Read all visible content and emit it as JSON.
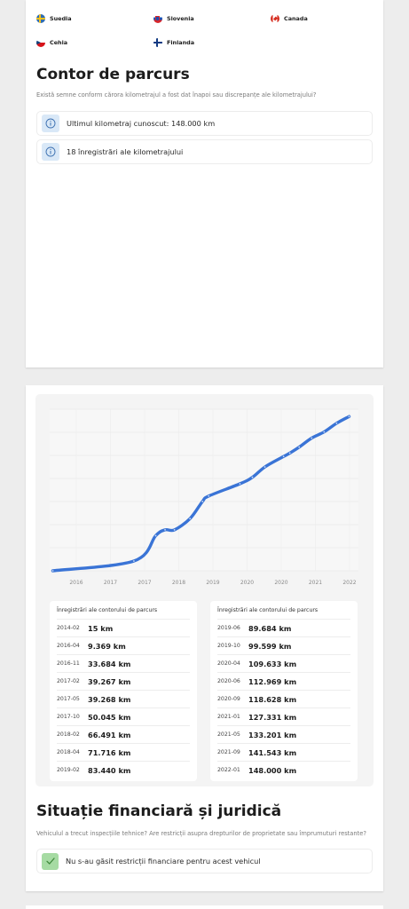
{
  "countries": [
    "Suedia",
    "Slovenia",
    "Canada",
    "Cehia",
    "Finlanda"
  ],
  "odometer": {
    "title": "Contor de parcurs",
    "subtitle": "Există semne conform cărora kilometrajul a fost dat înapoi sau discrepanțe ale kilometrajului?",
    "last_known": "Ultimul kilometraj cunoscut: 148.000 km",
    "records_count": "18 înregistrări ale kilometrajului"
  },
  "chart_data": {
    "type": "line",
    "x_tick_labels": [
      "2016",
      "2017",
      "2017",
      "2018",
      "2019",
      "2020",
      "2020",
      "2021",
      "2022"
    ],
    "grid": true,
    "series": [
      {
        "color": "#3a74d6",
        "points": [
          {
            "x": "2014-02",
            "y": 15
          },
          {
            "x": "2016-04",
            "y": 9369
          },
          {
            "x": "2016-11",
            "y": 33684
          },
          {
            "x": "2017-02",
            "y": 39267
          },
          {
            "x": "2017-05",
            "y": 39268
          },
          {
            "x": "2017-10",
            "y": 50045
          },
          {
            "x": "2018-02",
            "y": 66491
          },
          {
            "x": "2018-04",
            "y": 71716
          },
          {
            "x": "2019-02",
            "y": 83440
          },
          {
            "x": "2019-06",
            "y": 89684
          },
          {
            "x": "2019-10",
            "y": 99599
          },
          {
            "x": "2020-04",
            "y": 109633
          },
          {
            "x": "2020-06",
            "y": 112969
          },
          {
            "x": "2020-09",
            "y": 118628
          },
          {
            "x": "2021-01",
            "y": 127331
          },
          {
            "x": "2021-05",
            "y": 133201
          },
          {
            "x": "2021-09",
            "y": 141543
          },
          {
            "x": "2022-01",
            "y": 148000
          }
        ]
      }
    ]
  },
  "records_title": "Înregistrări ale contorului de parcurs",
  "records_left": [
    {
      "date": "2014-02",
      "value": "15 km"
    },
    {
      "date": "2016-04",
      "value": "9.369 km"
    },
    {
      "date": "2016-11",
      "value": "33.684 km"
    },
    {
      "date": "2017-02",
      "value": "39.267 km"
    },
    {
      "date": "2017-05",
      "value": "39.268 km"
    },
    {
      "date": "2017-10",
      "value": "50.045 km"
    },
    {
      "date": "2018-02",
      "value": "66.491 km"
    },
    {
      "date": "2018-04",
      "value": "71.716 km"
    },
    {
      "date": "2019-02",
      "value": "83.440 km"
    }
  ],
  "records_right": [
    {
      "date": "2019-06",
      "value": "89.684 km"
    },
    {
      "date": "2019-10",
      "value": "99.599 km"
    },
    {
      "date": "2020-04",
      "value": "109.633 km"
    },
    {
      "date": "2020-06",
      "value": "112.969 km"
    },
    {
      "date": "2020-09",
      "value": "118.628 km"
    },
    {
      "date": "2021-01",
      "value": "127.331 km"
    },
    {
      "date": "2021-05",
      "value": "133.201 km"
    },
    {
      "date": "2021-09",
      "value": "141.543 km"
    },
    {
      "date": "2022-01",
      "value": "148.000 km"
    }
  ],
  "financial": {
    "title": "Situație financiară și juridică",
    "subtitle": "Vehiculul a trecut inspecțiile tehnice? Are restricții asupra drepturilor de proprietate sau împrumuturi restante?",
    "no_restrictions": "Nu s-au găsit restricții financiare pentru acest vehicul"
  },
  "colors": {
    "accent_line": "#3a74d6",
    "info_icon_bg": "#d9e8f7",
    "check_icon_bg": "#a6dba3"
  }
}
